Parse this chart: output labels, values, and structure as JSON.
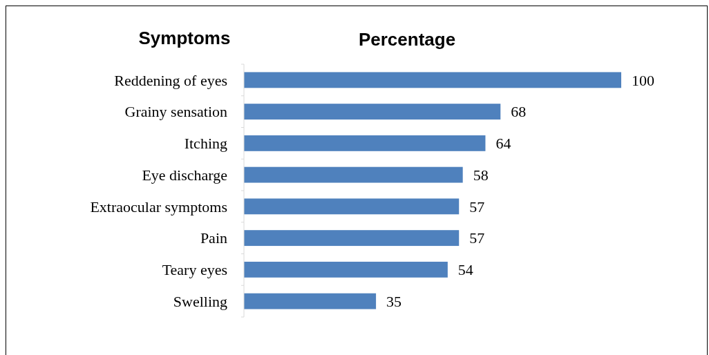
{
  "chart_data": {
    "type": "bar",
    "orientation": "horizontal",
    "title": "Percentage",
    "ylabel": "Symptoms",
    "categories": [
      "Reddening of eyes",
      "Grainy sensation",
      "Itching",
      "Eye discharge",
      "Extraocular symptoms",
      "Pain",
      "Teary eyes",
      "Swelling"
    ],
    "values": [
      100,
      68,
      64,
      58,
      57,
      57,
      54,
      35
    ],
    "color": "#4f81bd",
    "xlim": [
      0,
      100
    ],
    "data_labels": true
  }
}
